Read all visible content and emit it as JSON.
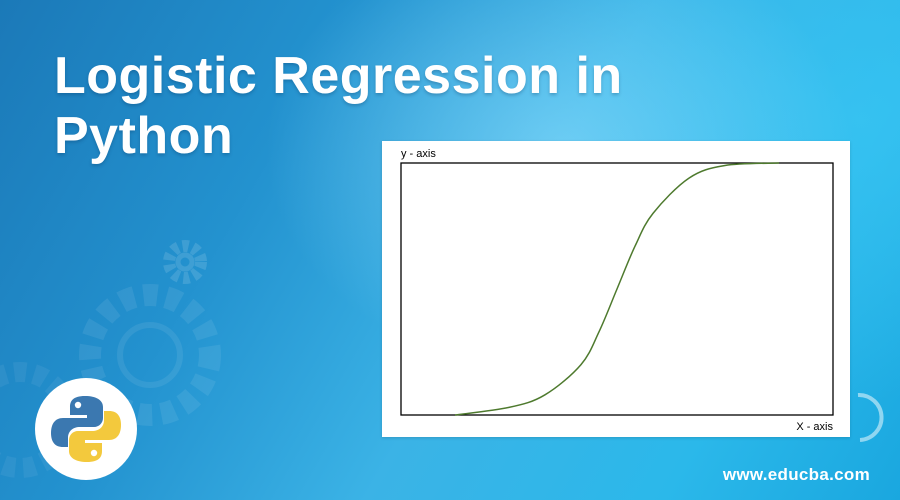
{
  "title": "Logistic Regression in Python",
  "website": "www.educba.com",
  "logo_icon": "python-logo-icon",
  "background_icons": [
    "gear-icon"
  ],
  "colors": {
    "background": "#2392cf",
    "title_text": "#ffffff",
    "curve": "#4e7a2e",
    "axes_box": "#000000",
    "python_blue": "#3b78b0",
    "python_yellow": "#f3c93d"
  },
  "chart_data": {
    "type": "line",
    "title": "",
    "xlabel": "X - axis",
    "ylabel": "y - axis",
    "grid": false,
    "xlim": [
      -6,
      6
    ],
    "ylim": [
      0,
      1
    ],
    "series": [
      {
        "x": [
          -4.5,
          -3,
          -2,
          -1,
          -0.5,
          0,
          0.5,
          1,
          2,
          3,
          4.5
        ],
        "y": [
          0,
          0.03,
          0.08,
          0.2,
          0.33,
          0.5,
          0.67,
          0.8,
          0.94,
          0.99,
          1
        ]
      }
    ]
  }
}
